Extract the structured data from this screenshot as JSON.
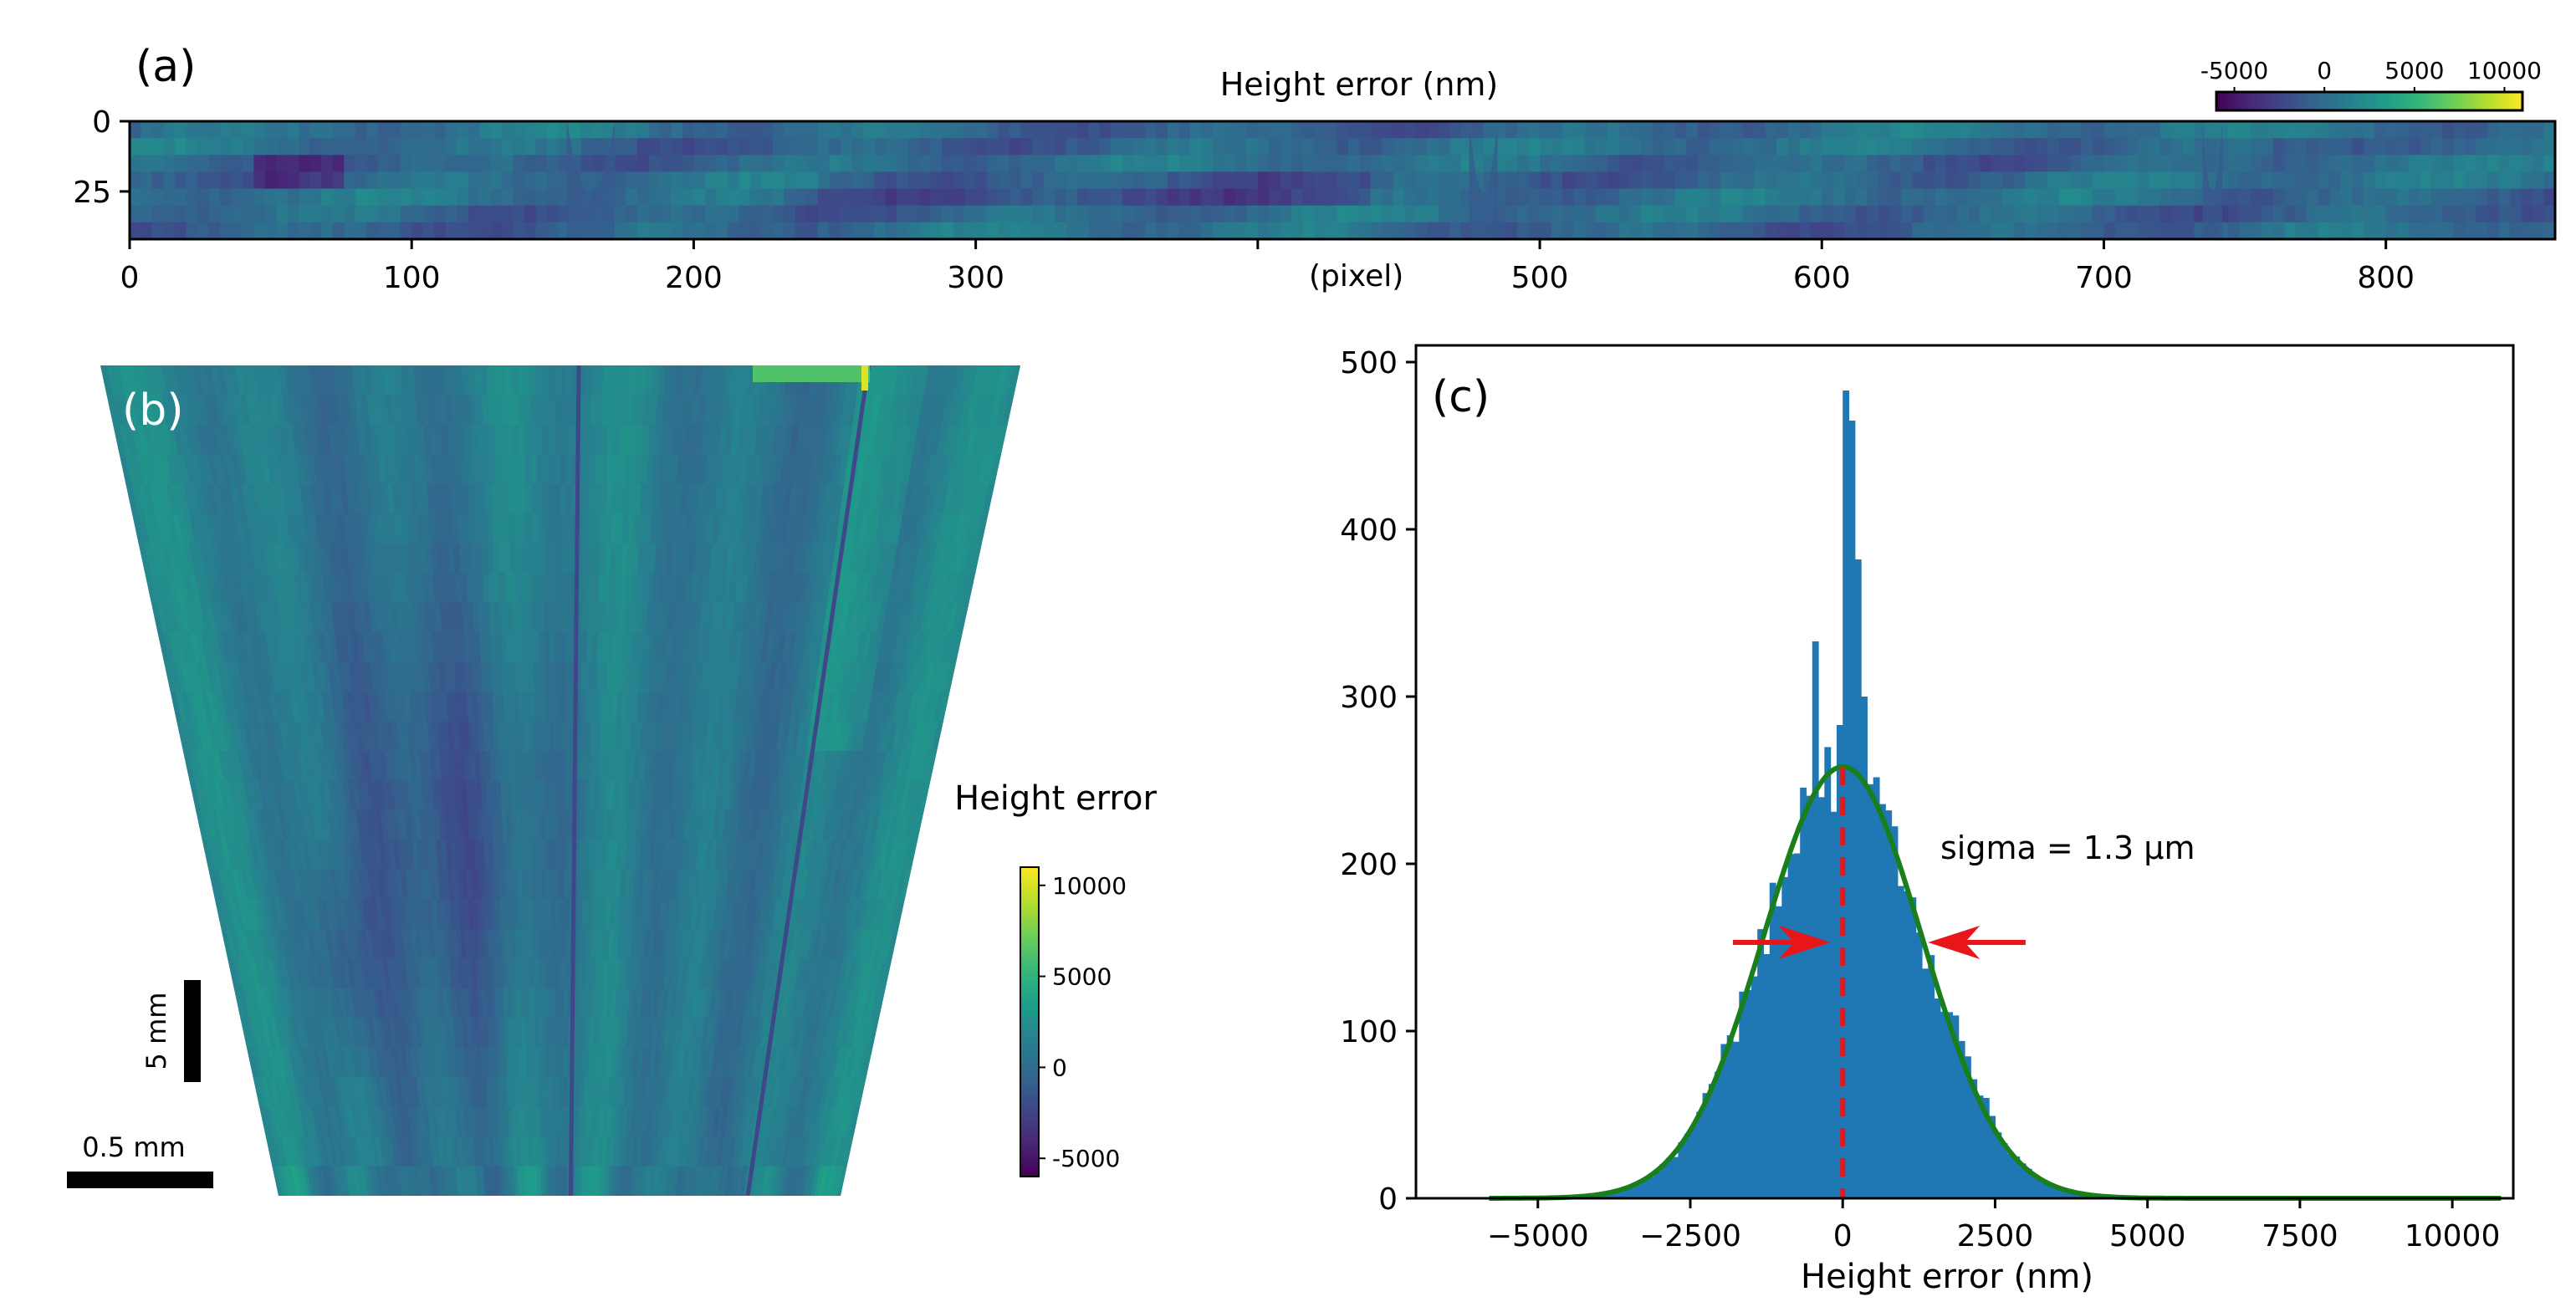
{
  "panel_labels": {
    "a": "(a)",
    "b": "(b)",
    "c": "(c)"
  },
  "colors": {
    "viridis": [
      "#440154",
      "#482878",
      "#3e4989",
      "#31688e",
      "#26828e",
      "#1f9e89",
      "#35b779",
      "#6ece58",
      "#b5de2b",
      "#fde725"
    ],
    "bar": "#1f77b4",
    "fit": "#1a7f1a",
    "marker": "#e8161b",
    "frame": "#000000"
  },
  "chart_data": [
    {
      "id": "a",
      "type": "heatmap",
      "title": "Height error (nm)",
      "x_unit_label": "(pixel)",
      "x_range": [
        0,
        860
      ],
      "x_ticks": [
        0,
        100,
        200,
        300,
        400,
        500,
        600,
        700,
        800
      ],
      "x_tick_labels": [
        "0",
        "100",
        "200",
        "300",
        "",
        "500",
        "600",
        "700",
        "800"
      ],
      "y_range": [
        0,
        42
      ],
      "y_ticks": [
        0,
        25
      ],
      "colorbar": {
        "range": [
          -6000,
          11000
        ],
        "ticks": [
          -5000,
          0,
          5000,
          10000
        ],
        "tick_labels": [
          "-5000",
          "0",
          "5000",
          "10000"
        ]
      }
    },
    {
      "id": "b",
      "type": "heatmap",
      "colorbar_label": "Height error",
      "colorbar": {
        "range": [
          -6000,
          11000
        ],
        "ticks": [
          10000,
          5000,
          0,
          -5000
        ],
        "tick_labels": [
          "10000",
          "5000",
          "0",
          "-5000"
        ]
      },
      "scale_bars": {
        "vertical": "5 mm",
        "horizontal": "0.5 mm"
      }
    },
    {
      "id": "c",
      "type": "bar",
      "subtype": "histogram",
      "xlabel": "Height error (nm)",
      "ylabel": "",
      "xlim": [
        -7000,
        11000
      ],
      "ylim": [
        0,
        510
      ],
      "x_ticks": [
        -5000,
        -2500,
        0,
        2500,
        5000,
        7500,
        10000
      ],
      "x_tick_labels": [
        "−5000",
        "−2500",
        "0",
        "2500",
        "5000",
        "7500",
        "10000"
      ],
      "y_ticks": [
        0,
        100,
        200,
        300,
        400,
        500
      ],
      "y_tick_labels": [
        "0",
        "100",
        "200",
        "300",
        "400",
        "500"
      ],
      "bin_width": 100,
      "bin_start": -5800,
      "bin_end": 10800,
      "spikes": [
        {
          "x": -500,
          "value": 333
        },
        {
          "x": -100,
          "value": 283
        },
        {
          "x": 0,
          "value": 483
        },
        {
          "x": 100,
          "value": 465
        },
        {
          "x": 200,
          "value": 382
        },
        {
          "x": 300,
          "value": 300
        }
      ],
      "fit": {
        "type": "gaussian",
        "amplitude": 258,
        "mean": 0,
        "sigma": 1300
      },
      "annotation": "sigma = 1.3 μm",
      "fwhm_arrows": {
        "y": 153,
        "left_from": -1800,
        "left_to": -200,
        "right_from": 3000,
        "right_to": 1400
      },
      "mean_line_x": 0
    }
  ]
}
